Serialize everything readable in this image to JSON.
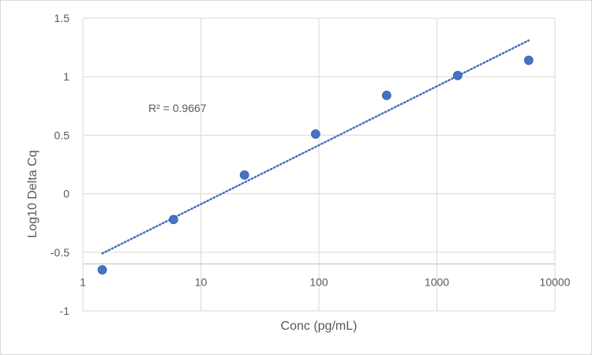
{
  "chart_data": {
    "type": "scatter",
    "title": "",
    "xlabel": "Conc (pg/mL)",
    "ylabel": "Log10 Delta Cq",
    "x_scale": "log",
    "xlim": [
      1,
      10000
    ],
    "ylim": [
      -1,
      1.5
    ],
    "x_ticks": [
      "1",
      "10",
      "100",
      "1000",
      "10000"
    ],
    "y_ticks": [
      "1.5",
      "1",
      "0.5",
      "0",
      "-0.5",
      "-1"
    ],
    "grid": true,
    "legend": "none",
    "series": [
      {
        "color": "#4472c4",
        "x": [
          1.46,
          5.86,
          23.4,
          93.8,
          375,
          1500,
          6000
        ],
        "y": [
          -0.65,
          -0.22,
          0.16,
          0.51,
          0.84,
          1.01,
          1.14
        ]
      }
    ],
    "trendline": {
      "kind": "logarithmic",
      "style": "dotted",
      "color": "#4472c4",
      "x": [
        1.46,
        6000
      ],
      "y": [
        -0.51,
        1.31
      ],
      "label": "R² = 0.9667"
    }
  }
}
